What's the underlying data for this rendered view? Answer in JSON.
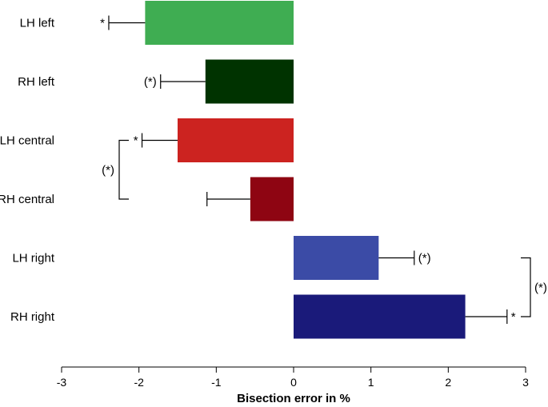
{
  "chart_data": {
    "type": "bar",
    "orientation": "horizontal",
    "title": "",
    "xlabel": "Bisection error in %",
    "ylabel": "",
    "xlim": [
      -3,
      3
    ],
    "xticks": [
      -3,
      -2,
      -1,
      0,
      1,
      2,
      3
    ],
    "grid": false,
    "legend": "none",
    "categories": [
      "LH left",
      "RH left",
      "LH central",
      "RH central",
      "LH right",
      "RH right"
    ],
    "values": [
      -1.92,
      -1.14,
      -1.5,
      -0.56,
      1.1,
      2.22
    ],
    "error": [
      0.47,
      0.58,
      0.46,
      0.56,
      0.46,
      0.54
    ],
    "colors": [
      "#3fad52",
      "#003300",
      "#cc2320",
      "#8e0512",
      "#3b4ba6",
      "#1a1a7a"
    ],
    "bar_annotations": [
      "*",
      "(*)",
      "*",
      "",
      "(*)",
      "*"
    ],
    "brackets": [
      {
        "from": "LH central",
        "to": "RH central",
        "label": "(*)",
        "side": "left"
      },
      {
        "from": "LH right",
        "to": "RH right",
        "label": "(*)",
        "side": "right"
      }
    ]
  }
}
